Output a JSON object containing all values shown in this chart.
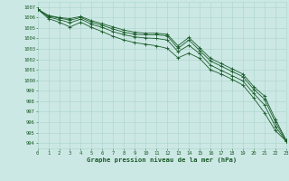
{
  "title": "Graphe pression niveau de la mer (hPa)",
  "bg_color": "#cce8e4",
  "grid_color": "#aad4cc",
  "line_color": "#1a5c2a",
  "xlim": [
    0,
    23
  ],
  "ylim": [
    993.5,
    1007.5
  ],
  "xticks": [
    0,
    1,
    2,
    3,
    4,
    5,
    6,
    7,
    8,
    9,
    10,
    11,
    12,
    13,
    14,
    15,
    16,
    17,
    18,
    19,
    20,
    21,
    22,
    23
  ],
  "yticks": [
    994,
    995,
    996,
    997,
    998,
    999,
    1000,
    1001,
    1002,
    1003,
    1004,
    1005,
    1006,
    1007
  ],
  "line1": [
    1006.8,
    1006.2,
    1006.0,
    1005.9,
    1006.1,
    1005.7,
    1005.4,
    1005.1,
    1004.8,
    1004.6,
    1004.5,
    1004.5,
    1004.4,
    1003.3,
    1004.1,
    1003.1,
    1002.1,
    1001.6,
    1001.1,
    1000.6,
    999.4,
    998.5,
    996.3,
    994.3
  ],
  "line2": [
    1006.8,
    1006.15,
    1005.95,
    1005.75,
    1006.0,
    1005.55,
    1005.25,
    1004.9,
    1004.6,
    1004.4,
    1004.35,
    1004.35,
    1004.25,
    1003.05,
    1003.85,
    1002.85,
    1001.85,
    1001.35,
    1000.85,
    1000.35,
    999.15,
    998.2,
    996.0,
    994.25
  ],
  "line3": [
    1006.8,
    1006.05,
    1005.8,
    1005.5,
    1005.85,
    1005.35,
    1005.05,
    1004.65,
    1004.35,
    1004.15,
    1004.05,
    1004.0,
    1003.85,
    1002.75,
    1003.35,
    1002.55,
    1001.45,
    1000.95,
    1000.45,
    999.95,
    998.75,
    997.65,
    995.6,
    994.2
  ],
  "line4": [
    1006.8,
    1005.9,
    1005.55,
    1005.1,
    1005.55,
    1005.05,
    1004.65,
    1004.2,
    1003.85,
    1003.6,
    1003.45,
    1003.3,
    1003.05,
    1002.15,
    1002.6,
    1002.1,
    1001.0,
    1000.6,
    1000.1,
    999.55,
    998.3,
    996.9,
    995.2,
    994.2
  ]
}
